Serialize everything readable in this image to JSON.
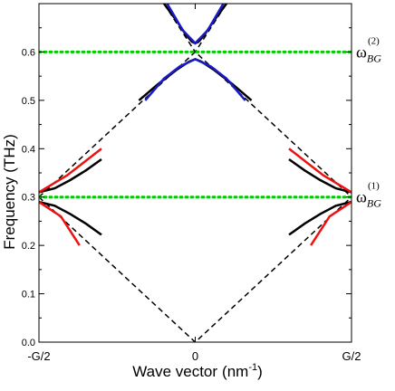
{
  "chart_data": {
    "type": "line",
    "xlabel": "Wave vector",
    "xlabel_unit": "(nm",
    "xlabel_unit_sup": "-1",
    "xlabel_unit_close": ")",
    "ylabel": "Frequency (THz)",
    "xlim": [
      -0.5,
      0.5
    ],
    "ylim": [
      0.0,
      0.7
    ],
    "x_ticks": [
      {
        "value": -0.5,
        "label": "-G/2"
      },
      {
        "value": 0,
        "label": "0"
      },
      {
        "value": 0.5,
        "label": "G/2"
      }
    ],
    "y_ticks": [
      {
        "value": 0.0,
        "label": "0.0"
      },
      {
        "value": 0.1,
        "label": "0.1"
      },
      {
        "value": 0.2,
        "label": "0.2"
      },
      {
        "value": 0.3,
        "label": "0.3"
      },
      {
        "value": 0.4,
        "label": "0.4"
      },
      {
        "value": 0.5,
        "label": "0.5"
      },
      {
        "value": 0.6,
        "label": "0.6"
      }
    ],
    "grid": false,
    "annotations": [
      {
        "symbol": "ω",
        "sub": "BG",
        "sup": "(2)",
        "y": 0.6
      },
      {
        "symbol": "ω",
        "sub": "BG",
        "sup": "(1)",
        "y": 0.3
      }
    ],
    "series": [
      {
        "color": "#000000",
        "dash": "dashed",
        "x": [
          -0.5,
          0,
          0.5
        ],
        "y": [
          0.3,
          0.0,
          0.3
        ]
      },
      {
        "color": "#000000",
        "dash": "dashed",
        "x": [
          -0.5,
          0,
          0.5
        ],
        "y": [
          0.3,
          0.6,
          0.3
        ]
      },
      {
        "color": "#000000",
        "dash": "dashed",
        "x": [
          -0.1,
          0,
          0.1
        ],
        "y": [
          0.7,
          0.6,
          0.7
        ]
      },
      {
        "color": "#00cc00",
        "dash": "dotted",
        "x": [
          -0.5,
          0.5
        ],
        "y": [
          0.6,
          0.6
        ]
      },
      {
        "color": "#00cc00",
        "dash": "dotted",
        "x": [
          -0.5,
          0.5
        ],
        "y": [
          0.3,
          0.3
        ]
      },
      {
        "color": "#000000",
        "dash": "solid",
        "x": [
          -0.5,
          -0.45,
          -0.4,
          -0.35,
          -0.3
        ],
        "y": [
          0.29,
          0.282,
          0.265,
          0.245,
          0.222
        ]
      },
      {
        "color": "#000000",
        "dash": "solid",
        "x": [
          0.5,
          0.45,
          0.4,
          0.35,
          0.3
        ],
        "y": [
          0.29,
          0.282,
          0.265,
          0.245,
          0.222
        ]
      },
      {
        "color": "#000000",
        "dash": "solid",
        "x": [
          -0.5,
          -0.45,
          -0.4,
          -0.35,
          -0.3
        ],
        "y": [
          0.31,
          0.318,
          0.335,
          0.355,
          0.378
        ]
      },
      {
        "color": "#000000",
        "dash": "solid",
        "x": [
          0.5,
          0.45,
          0.4,
          0.35,
          0.3
        ],
        "y": [
          0.31,
          0.318,
          0.335,
          0.355,
          0.378
        ]
      },
      {
        "color": "#000000",
        "dash": "solid",
        "x": [
          -0.18,
          -0.12,
          -0.06,
          -0.02,
          0,
          0.02,
          0.06,
          0.12,
          0.18
        ],
        "y": [
          0.5,
          0.533,
          0.563,
          0.58,
          0.585,
          0.58,
          0.563,
          0.533,
          0.5
        ]
      },
      {
        "color": "#000000",
        "dash": "solid",
        "x": [
          -0.1,
          -0.06,
          -0.03,
          -0.01,
          0,
          0.01,
          0.03,
          0.06,
          0.1
        ],
        "y": [
          0.7,
          0.665,
          0.636,
          0.621,
          0.618,
          0.621,
          0.636,
          0.665,
          0.7
        ]
      },
      {
        "color": "#ee1111",
        "dash": "solid",
        "x": [
          -0.5,
          -0.43,
          -0.37
        ],
        "y": [
          0.29,
          0.26,
          0.2
        ]
      },
      {
        "color": "#ee1111",
        "dash": "solid",
        "x": [
          0.5,
          0.43,
          0.37
        ],
        "y": [
          0.29,
          0.26,
          0.2
        ]
      },
      {
        "color": "#ee1111",
        "dash": "solid",
        "x": [
          -0.5,
          -0.41,
          -0.3
        ],
        "y": [
          0.31,
          0.345,
          0.4
        ]
      },
      {
        "color": "#ee1111",
        "dash": "solid",
        "x": [
          0.5,
          0.41,
          0.3
        ],
        "y": [
          0.31,
          0.345,
          0.4
        ]
      },
      {
        "color": "#1a1acc",
        "dash": "solid",
        "x": [
          -0.16,
          -0.1,
          -0.05,
          0,
          0.05,
          0.1,
          0.16
        ],
        "y": [
          0.5,
          0.545,
          0.57,
          0.585,
          0.57,
          0.545,
          0.5
        ]
      },
      {
        "color": "#1a1acc",
        "dash": "solid",
        "x": [
          -0.09,
          -0.04,
          0,
          0.04,
          0.09
        ],
        "y": [
          0.7,
          0.645,
          0.618,
          0.645,
          0.7
        ]
      }
    ]
  }
}
